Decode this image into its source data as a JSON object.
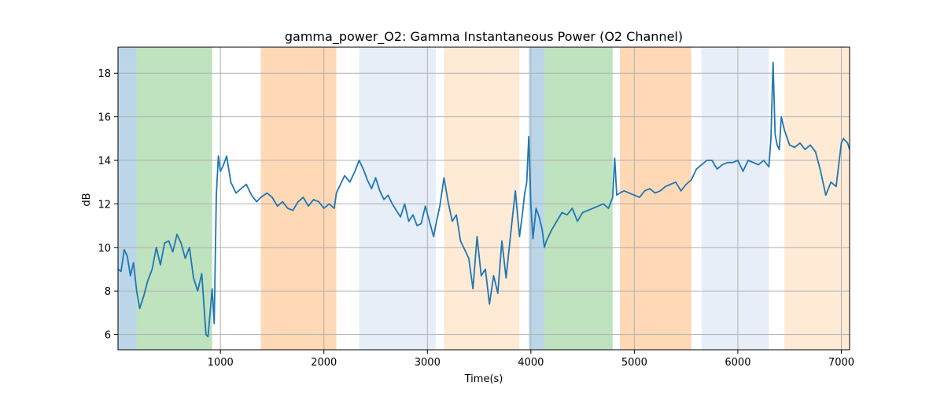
{
  "chart_data": {
    "type": "line",
    "title": "gamma_power_O2: Gamma Instantaneous Power (O2 Channel)",
    "xlabel": "Time(s)",
    "ylabel": "dB",
    "xlim": [
      10,
      7080
    ],
    "ylim": [
      5.3,
      19.2
    ],
    "xticks": [
      1000,
      2000,
      3000,
      4000,
      5000,
      6000,
      7000
    ],
    "yticks": [
      6,
      8,
      10,
      12,
      14,
      16,
      18
    ],
    "grid": true,
    "line_color": "#1f77b4",
    "bands": [
      {
        "x0": 10,
        "x1": 190,
        "color": "#1f77b4",
        "opacity": 0.3
      },
      {
        "x0": 190,
        "x1": 920,
        "color": "#2ca02c",
        "opacity": 0.3
      },
      {
        "x0": 1390,
        "x1": 2120,
        "color": "#ff7f0e",
        "opacity": 0.3
      },
      {
        "x0": 2340,
        "x1": 3080,
        "color": "#aec7e8",
        "opacity": 0.3
      },
      {
        "x0": 3160,
        "x1": 3890,
        "color": "#ffbb78",
        "opacity": 0.3
      },
      {
        "x0": 3980,
        "x1": 4130,
        "color": "#1f77b4",
        "opacity": 0.3
      },
      {
        "x0": 4130,
        "x1": 4790,
        "color": "#2ca02c",
        "opacity": 0.3
      },
      {
        "x0": 4860,
        "x1": 5550,
        "color": "#ff7f0e",
        "opacity": 0.3
      },
      {
        "x0": 5650,
        "x1": 6300,
        "color": "#aec7e8",
        "opacity": 0.3
      },
      {
        "x0": 6450,
        "x1": 7080,
        "color": "#ffbb78",
        "opacity": 0.3
      }
    ],
    "series": [
      {
        "x": [
          10,
          40,
          70,
          100,
          130,
          160,
          190,
          220,
          260,
          300,
          340,
          380,
          420,
          460,
          500,
          540,
          580,
          620,
          660,
          700,
          740,
          780,
          820,
          860,
          880,
          900,
          920,
          940,
          960,
          980,
          1000,
          1030,
          1060,
          1100,
          1150,
          1200,
          1250,
          1300,
          1350,
          1390,
          1450,
          1500,
          1550,
          1600,
          1650,
          1700,
          1750,
          1800,
          1850,
          1900,
          1950,
          2000,
          2050,
          2100,
          2120,
          2150,
          2200,
          2250,
          2300,
          2340,
          2380,
          2420,
          2460,
          2500,
          2540,
          2580,
          2620,
          2660,
          2700,
          2740,
          2780,
          2820,
          2860,
          2900,
          2940,
          2980,
          3020,
          3060,
          3080,
          3120,
          3160,
          3200,
          3240,
          3280,
          3320,
          3360,
          3400,
          3440,
          3480,
          3520,
          3560,
          3600,
          3640,
          3680,
          3720,
          3760,
          3800,
          3850,
          3890,
          3920,
          3940,
          3960,
          3980,
          4000,
          4020,
          4050,
          4080,
          4110,
          4130,
          4150,
          4200,
          4250,
          4300,
          4350,
          4400,
          4450,
          4500,
          4550,
          4600,
          4650,
          4700,
          4750,
          4790,
          4810,
          4830,
          4860,
          4900,
          4950,
          5000,
          5050,
          5100,
          5150,
          5200,
          5250,
          5300,
          5350,
          5400,
          5450,
          5500,
          5550,
          5600,
          5650,
          5700,
          5750,
          5800,
          5850,
          5900,
          5950,
          6000,
          6050,
          6100,
          6150,
          6200,
          6250,
          6300,
          6320,
          6340,
          6360,
          6380,
          6400,
          6420,
          6450,
          6500,
          6550,
          6600,
          6650,
          6700,
          6750,
          6800,
          6850,
          6900,
          6950,
          7000,
          7020,
          7040,
          7060,
          7080
        ],
        "y": [
          9.0,
          8.9,
          9.9,
          9.6,
          8.7,
          9.3,
          8.0,
          7.2,
          7.8,
          8.5,
          9.0,
          10.0,
          9.2,
          10.2,
          10.3,
          9.8,
          10.6,
          10.2,
          9.5,
          10.0,
          8.6,
          8.0,
          8.8,
          6.0,
          5.9,
          7.0,
          8.1,
          6.5,
          12.4,
          14.2,
          13.5,
          13.8,
          14.2,
          13.0,
          12.5,
          12.7,
          12.9,
          12.4,
          12.1,
          12.3,
          12.5,
          12.3,
          11.9,
          12.1,
          11.8,
          11.7,
          12.1,
          12.3,
          11.9,
          12.2,
          12.1,
          11.8,
          12.0,
          11.8,
          12.5,
          12.8,
          13.3,
          13.0,
          13.5,
          14.0,
          13.6,
          13.1,
          12.7,
          13.2,
          12.6,
          12.2,
          12.4,
          12.0,
          11.7,
          11.4,
          12.0,
          11.2,
          11.5,
          11.0,
          11.1,
          11.9,
          11.2,
          10.5,
          11.0,
          11.9,
          13.2,
          12.1,
          11.2,
          11.5,
          10.3,
          9.9,
          9.5,
          8.1,
          10.5,
          8.7,
          9.0,
          7.4,
          8.7,
          7.9,
          10.3,
          8.6,
          10.4,
          12.6,
          10.5,
          11.6,
          12.5,
          13.0,
          15.1,
          11.9,
          10.4,
          11.8,
          11.4,
          10.8,
          10.0,
          10.3,
          10.8,
          11.2,
          11.6,
          11.5,
          11.8,
          11.2,
          11.6,
          11.7,
          11.8,
          11.9,
          12.0,
          11.8,
          12.3,
          14.1,
          12.4,
          12.5,
          12.6,
          12.5,
          12.4,
          12.3,
          12.6,
          12.7,
          12.5,
          12.6,
          12.8,
          12.9,
          13.0,
          12.6,
          12.9,
          13.1,
          13.6,
          13.8,
          14.0,
          14.0,
          13.6,
          13.8,
          13.9,
          13.9,
          14.0,
          13.5,
          14.0,
          13.9,
          13.8,
          14.0,
          13.7,
          15.0,
          18.5,
          15.2,
          14.7,
          14.5,
          16.0,
          15.4,
          14.7,
          14.6,
          14.8,
          14.5,
          14.7,
          14.4,
          13.5,
          12.4,
          13.0,
          12.8,
          14.8,
          15.0,
          14.9,
          14.8,
          14.5
        ]
      }
    ]
  }
}
